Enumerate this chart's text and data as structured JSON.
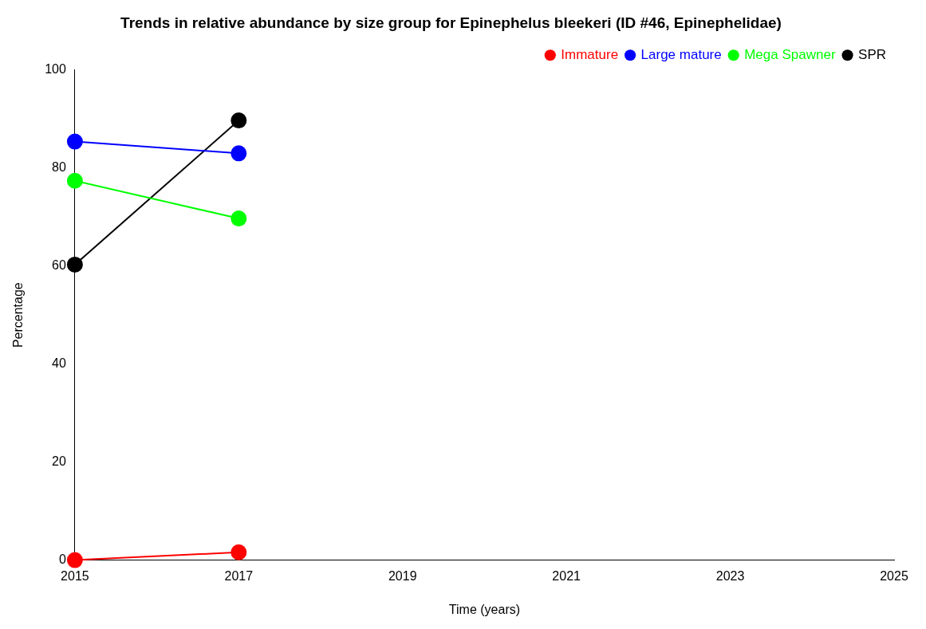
{
  "chart_data": {
    "type": "line",
    "title": "Trends in relative abundance by size group for Epinephelus bleekeri (ID #46, Epinephelidae)",
    "xlabel": "Time (years)",
    "ylabel": "Percentage",
    "x": [
      2015,
      2017
    ],
    "xlim": [
      2015,
      2025
    ],
    "xticks": [
      2015,
      2017,
      2019,
      2021,
      2023,
      2025
    ],
    "ylim": [
      0,
      100
    ],
    "yticks": [
      0,
      20,
      40,
      60,
      80,
      100
    ],
    "grid": false,
    "legend": "top right",
    "marker": "circle",
    "line_style": "solid",
    "series": [
      {
        "name": "Immature",
        "color": "#ff0000",
        "values": [
          0,
          1.6
        ]
      },
      {
        "name": "Large mature",
        "color": "#0000ff",
        "values": [
          85.4,
          83.0
        ]
      },
      {
        "name": "Mega Spawner",
        "color": "#00ff00",
        "values": [
          77.4,
          69.7
        ]
      },
      {
        "name": "SPR",
        "color": "#000000",
        "values": [
          60.3,
          89.7
        ]
      }
    ]
  }
}
